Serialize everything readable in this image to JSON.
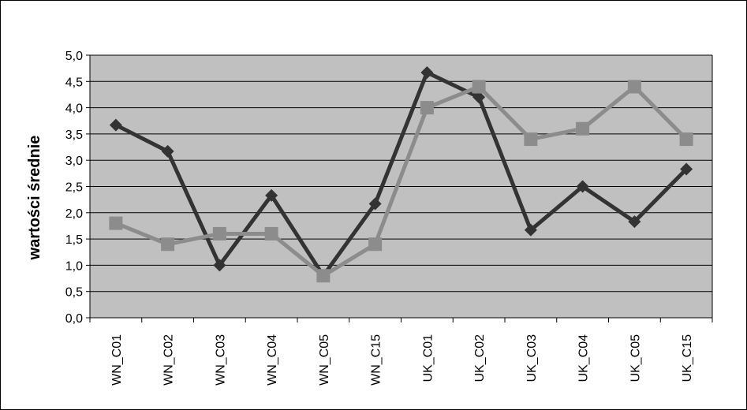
{
  "chart_data": {
    "type": "line",
    "title": "",
    "xlabel": "",
    "ylabel": "wartości średnie",
    "ylim": [
      0,
      5
    ],
    "ytick_step": 0.5,
    "ytick_decimal_separator": ",",
    "grid": true,
    "legend": "none",
    "plot_background": "#c0c0c0",
    "categories": [
      "WN_C01",
      "WN_C02",
      "WN_C03",
      "WN_C04",
      "WN_C05",
      "WN_C15",
      "UK_C01",
      "UK_C02",
      "UK_C03",
      "UK_C04",
      "UK_C05",
      "UK_C15"
    ],
    "series": [
      {
        "marker": "diamond",
        "color": "#333333",
        "values": [
          3.67,
          3.17,
          1.0,
          2.33,
          0.8,
          2.17,
          4.67,
          4.2,
          1.67,
          2.5,
          1.83,
          2.83
        ]
      },
      {
        "marker": "square",
        "color": "#8c8c8c",
        "values": [
          1.8,
          1.4,
          1.6,
          1.6,
          0.8,
          1.4,
          4.0,
          4.4,
          3.4,
          3.6,
          4.4,
          3.4
        ]
      }
    ]
  }
}
